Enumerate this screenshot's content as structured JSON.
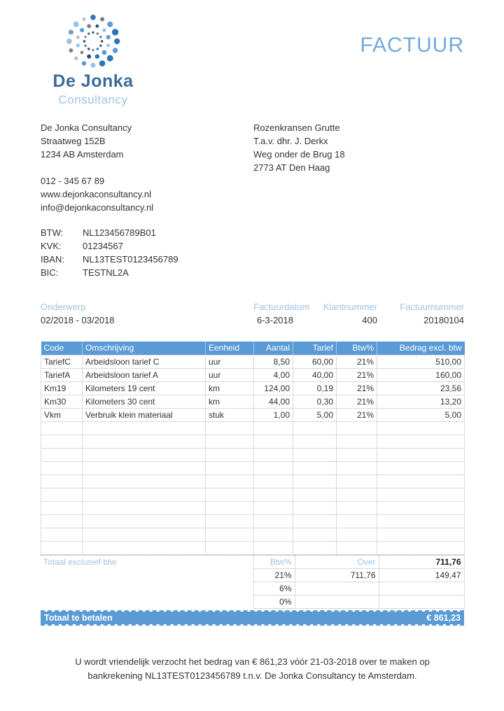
{
  "brand": {
    "name": "De Jonka",
    "subtitle": "Consultancy"
  },
  "doc_title": "FACTUUR",
  "company": {
    "lines": [
      "De Jonka Consultancy",
      "Straatweg 152B",
      "1234 AB Amsterdam"
    ],
    "contact": [
      "012 - 345 67 89",
      "www.dejonkaconsultancy.nl",
      "info@dejonkaconsultancy.nl"
    ]
  },
  "client": {
    "lines": [
      "Rozenkransen Grutte",
      "T.a.v. dhr. J. Derkx",
      "Weg onder de Brug 18",
      "2773 AT Den Haag"
    ]
  },
  "registration": [
    {
      "label": "BTW:",
      "value": "NL123456789B01"
    },
    {
      "label": "KVK:",
      "value": "01234567"
    },
    {
      "label": "IBAN:",
      "value": "NL13TEST0123456789"
    },
    {
      "label": "BIC:",
      "value": "TESTNL2A"
    }
  ],
  "meta": {
    "subject_label": "Onderwerp",
    "subject_value": "02/2018 - 03/2018",
    "date_label": "Factuurdatum",
    "date_value": "6-3-2018",
    "client_no_label": "Klantnummer",
    "client_no_value": "400",
    "invoice_no_label": "Factuurnummer",
    "invoice_no_value": "20180104"
  },
  "table": {
    "headers": {
      "code": "Code",
      "description": "Omschrijving",
      "unit": "Eenheid",
      "qty": "Aantal",
      "rate": "Tarief",
      "vat": "Btw%",
      "amount": "Bedrag excl. btw"
    },
    "rows": [
      {
        "code": "TariefC",
        "description": "Arbeidsloon tarief C",
        "unit": "uur",
        "qty": "8,50",
        "rate": "60,00",
        "vat": "21%",
        "amount": "510,00"
      },
      {
        "code": "TariefA",
        "description": "Arbeidsloon tarief A",
        "unit": "uur",
        "qty": "4,00",
        "rate": "40,00",
        "vat": "21%",
        "amount": "160,00"
      },
      {
        "code": "Km19",
        "description": "Kilometers 19 cent",
        "unit": "km",
        "qty": "124,00",
        "rate": "0,19",
        "vat": "21%",
        "amount": "23,56"
      },
      {
        "code": "Km30",
        "description": "Kilometers 30 cent",
        "unit": "km",
        "qty": "44,00",
        "rate": "0,30",
        "vat": "21%",
        "amount": "13,20"
      },
      {
        "code": "Vkm",
        "description": "Verbruik klein materiaal",
        "unit": "stuk",
        "qty": "1,00",
        "rate": "5,00",
        "vat": "21%",
        "amount": "5,00"
      }
    ],
    "empty_row_count": 10
  },
  "totals": {
    "excl_label": "Totaal exclusief btw",
    "btw_header": "Btw%",
    "over_header": "Over",
    "total_excl": "711,76",
    "vat_rows": [
      {
        "rate": "21%",
        "over": "711,76",
        "amount": "149,47"
      },
      {
        "rate": "6%",
        "over": "",
        "amount": ""
      },
      {
        "rate": "0%",
        "over": "",
        "amount": ""
      }
    ],
    "grand_label": "Totaal te betalen",
    "grand_amount": "€ 861,23"
  },
  "footer": {
    "line1": "U wordt vriendelijk verzocht het bedrag van € 861,23 vóór 21-03-2018 over te maken op",
    "line2": "bankrekening NL13TEST0123456789 t.n.v. De Jonka Consultancy te Amsterdam."
  },
  "colors": {
    "accent": "#5B9BD5",
    "accent_light": "#9DC3E6",
    "brand_text": "#3A6B9C",
    "grid": "#D9D9D9"
  }
}
